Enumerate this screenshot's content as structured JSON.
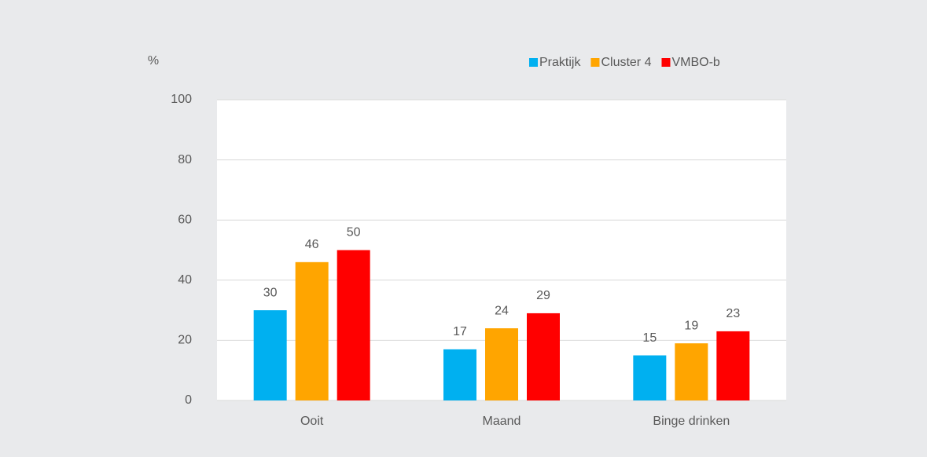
{
  "chart_data": {
    "type": "bar",
    "y_label": "%",
    "categories": [
      "Ooit",
      "Maand",
      "Binge drinken"
    ],
    "series": [
      {
        "name": "Praktijk",
        "color": "#00b0f0",
        "values": [
          30,
          17,
          15
        ]
      },
      {
        "name": "Cluster 4",
        "color": "#ffa500",
        "values": [
          46,
          24,
          19
        ]
      },
      {
        "name": "VMBO-b",
        "color": "#ff0000",
        "values": [
          50,
          29,
          23
        ]
      }
    ],
    "ylim": [
      0,
      100
    ],
    "yticks": [
      0,
      20,
      40,
      60,
      80,
      100
    ],
    "grid": true,
    "legend": "top-right"
  }
}
